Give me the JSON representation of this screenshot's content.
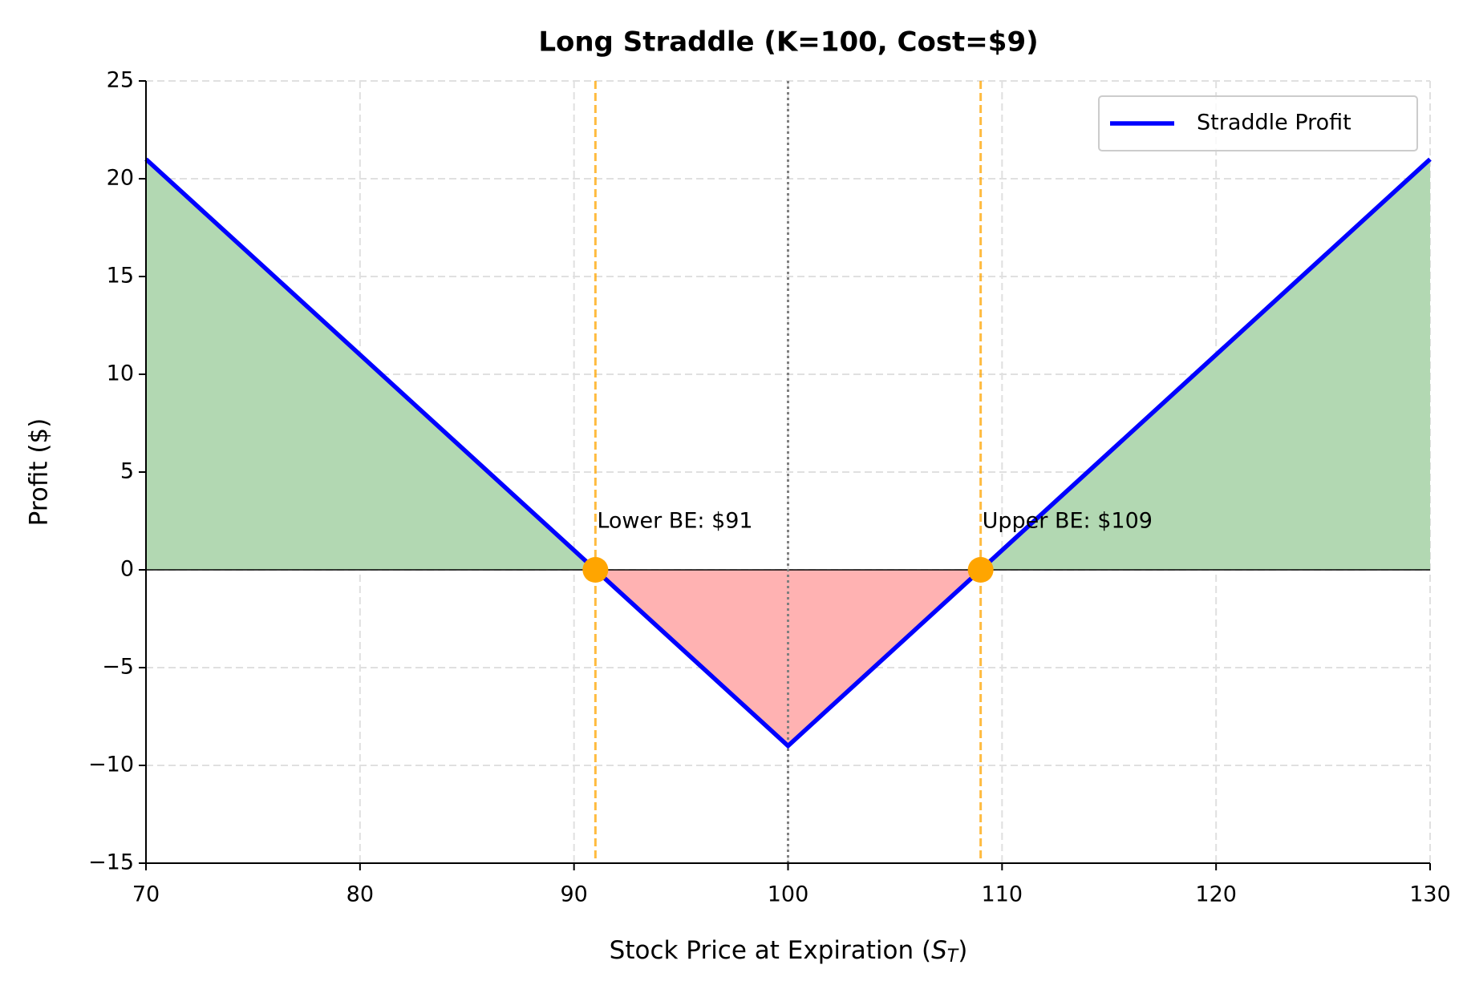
{
  "chart_data": {
    "type": "line",
    "title": "Long Straddle (K=100, Cost=$9)",
    "x_label": {
      "text": "Stock Price at Expiration (",
      "symbol": "S",
      "subscript": "T",
      "close": ")"
    },
    "y_label": "Profit ($)",
    "series": [
      {
        "name": "Straddle Profit",
        "color": "#0000ff",
        "x": [
          70,
          91,
          100,
          109,
          130
        ],
        "values": [
          21,
          0,
          -9,
          0,
          21
        ]
      }
    ],
    "profit_fill_color": "#b2d8b2",
    "loss_fill_color": "#ffb2b2",
    "strike": 100,
    "strike_color": "#808080",
    "breakevens": [
      91,
      109
    ],
    "breakeven_color": "#ffa500",
    "annotations": [
      "Lower BE: $91",
      "Upper BE: $109"
    ],
    "xlim": [
      70,
      130
    ],
    "xticks": [
      70,
      80,
      90,
      100,
      110,
      120,
      130
    ],
    "ylim": [
      -15,
      25
    ],
    "yticks": [
      {
        "value": -15,
        "label": "−15"
      },
      {
        "value": -10,
        "label": "−10"
      },
      {
        "value": -5,
        "label": "−5"
      },
      0,
      5,
      10,
      15,
      20,
      25
    ],
    "grid": true,
    "legend": "upper right"
  }
}
